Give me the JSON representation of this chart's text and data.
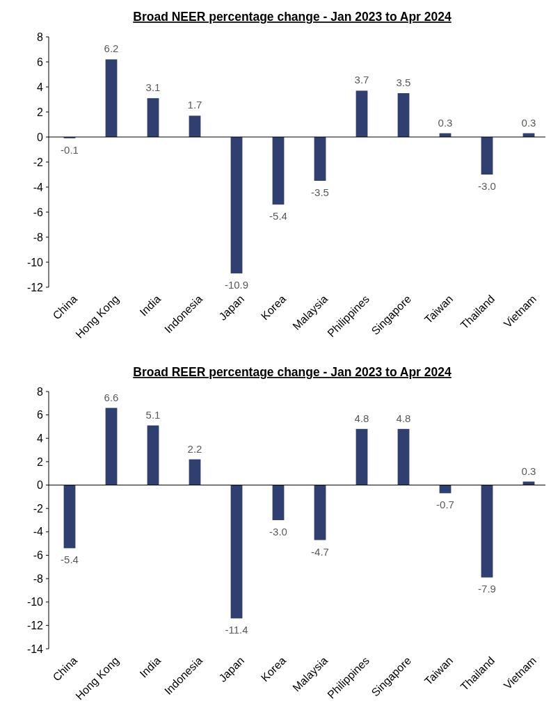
{
  "chart_data": [
    {
      "type": "bar",
      "title": "Broad NEER percentage change - Jan 2023 to Apr 2024",
      "categories": [
        "China",
        "Hong Kong",
        "India",
        "Indonesia",
        "Japan",
        "Korea",
        "Malaysia",
        "Philippines",
        "Singapore",
        "Taiwan",
        "Thailand",
        "Vietnam"
      ],
      "values": [
        -0.1,
        6.2,
        3.1,
        1.7,
        -10.9,
        -5.4,
        -3.5,
        3.7,
        3.5,
        0.3,
        -3.0,
        0.3
      ],
      "value_labels": [
        "-0.1",
        "6.2",
        "3.1",
        "1.7",
        "-10.9",
        "-5.4",
        "-3.5",
        "3.7",
        "3.5",
        "0.3",
        "-3.0",
        "0.3"
      ],
      "color": "#2f4070",
      "ylim": [
        -12,
        8
      ],
      "yticks": [
        -12,
        -10,
        -8,
        -6,
        -4,
        -2,
        0,
        2,
        4,
        6,
        8
      ]
    },
    {
      "type": "bar",
      "title": "Broad REER percentage change - Jan 2023 to Apr 2024",
      "categories": [
        "China",
        "Hong Kong",
        "India",
        "Indonesia",
        "Japan",
        "Korea",
        "Malaysia",
        "Philippines",
        "Singapore",
        "Taiwan",
        "Thailand",
        "Vietnam"
      ],
      "values": [
        -5.4,
        6.6,
        5.1,
        2.2,
        -11.4,
        -3.0,
        -4.7,
        4.8,
        4.8,
        -0.7,
        -7.9,
        0.3
      ],
      "value_labels": [
        "-5.4",
        "6.6",
        "5.1",
        "2.2",
        "-11.4",
        "-3.0",
        "-4.7",
        "4.8",
        "4.8",
        "-0.7",
        "-7.9",
        "0.3"
      ],
      "color": "#2f4070",
      "ylim": [
        -14,
        8
      ],
      "yticks": [
        -14,
        -12,
        -10,
        -8,
        -6,
        -4,
        -2,
        0,
        2,
        4,
        6,
        8
      ]
    }
  ]
}
